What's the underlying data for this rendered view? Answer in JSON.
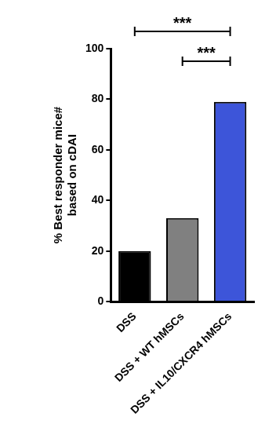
{
  "chart_data": {
    "type": "bar",
    "y_label": [
      "% Best responder mice#",
      "based on cDAI"
    ],
    "categories": [
      "DSS",
      "DSS + WT hMSCs",
      "DSS + IL10/CXCR4 hMSCs"
    ],
    "values": [
      20,
      33,
      79
    ],
    "colors": [
      "#000000",
      "#808080",
      "#3d55d9"
    ],
    "ylim": [
      0,
      100
    ],
    "yticks": [
      0,
      20,
      40,
      60,
      80,
      100
    ],
    "grid": false,
    "annotations": [
      {
        "text": "***",
        "from": "DSS",
        "to": "DSS + IL10/CXCR4 hMSCs"
      },
      {
        "text": "***",
        "from": "DSS + WT hMSCs",
        "to": "DSS + IL10/CXCR4 hMSCs"
      }
    ]
  }
}
